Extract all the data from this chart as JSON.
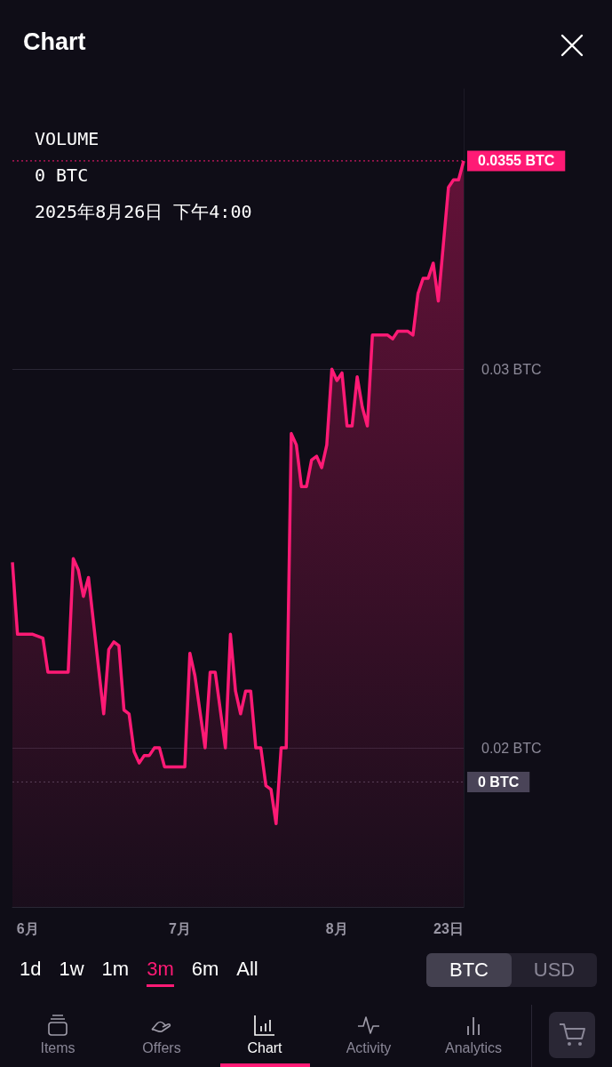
{
  "chart_data": {
    "type": "area",
    "title": "Chart",
    "x": [
      "2025-05-29",
      "2025-05-30",
      "2025-06-02",
      "2025-06-04",
      "2025-06-05",
      "2025-06-09",
      "2025-06-10",
      "2025-06-11",
      "2025-06-12",
      "2025-06-13",
      "2025-06-16",
      "2025-06-17",
      "2025-06-18",
      "2025-06-19",
      "2025-06-20",
      "2025-06-21",
      "2025-06-22",
      "2025-06-23",
      "2025-06-24",
      "2025-06-25",
      "2025-06-26",
      "2025-06-27",
      "2025-06-28",
      "2025-07-02",
      "2025-07-03",
      "2025-07-04",
      "2025-07-06",
      "2025-07-07",
      "2025-07-08",
      "2025-07-10",
      "2025-07-11",
      "2025-07-12",
      "2025-07-13",
      "2025-07-14",
      "2025-07-15",
      "2025-07-16",
      "2025-07-17",
      "2025-07-18",
      "2025-07-19",
      "2025-07-20",
      "2025-07-21",
      "2025-07-22",
      "2025-07-23",
      "2025-07-24",
      "2025-07-25",
      "2025-07-26",
      "2025-07-27",
      "2025-07-28",
      "2025-07-29",
      "2025-07-30",
      "2025-07-31",
      "2025-08-01",
      "2025-08-02",
      "2025-08-03",
      "2025-08-04",
      "2025-08-05",
      "2025-08-06",
      "2025-08-07",
      "2025-08-08",
      "2025-08-11",
      "2025-08-12",
      "2025-08-13",
      "2025-08-15",
      "2025-08-16",
      "2025-08-17",
      "2025-08-18",
      "2025-08-19",
      "2025-08-20",
      "2025-08-21",
      "2025-08-23",
      "2025-08-24",
      "2025-08-25",
      "2025-08-26"
    ],
    "series": [
      {
        "color": "#ff1a75",
        "values": [
          0.0249,
          0.023,
          0.023,
          0.0229,
          0.022,
          0.022,
          0.025,
          0.0247,
          0.024,
          0.0245,
          0.0209,
          0.0226,
          0.0228,
          0.0227,
          0.021,
          0.0209,
          0.0199,
          0.0196,
          0.0198,
          0.0198,
          0.02,
          0.02,
          0.0195,
          0.0195,
          0.0225,
          0.0219,
          0.02,
          0.022,
          0.022,
          0.02,
          0.023,
          0.0215,
          0.0209,
          0.0215,
          0.0215,
          0.02,
          0.02,
          0.019,
          0.0189,
          0.018,
          0.02,
          0.02,
          0.0283,
          0.028,
          0.0269,
          0.0269,
          0.0276,
          0.0277,
          0.0274,
          0.028,
          0.03,
          0.0297,
          0.0299,
          0.0285,
          0.0285,
          0.0298,
          0.029,
          0.0285,
          0.0309,
          0.0309,
          0.0308,
          0.031,
          0.031,
          0.0309,
          0.032,
          0.0324,
          0.0324,
          0.0328,
          0.0318,
          0.0348,
          0.035,
          0.035,
          0.0355
        ]
      }
    ],
    "xlim": [
      "2025-05-29",
      "2025-08-26"
    ],
    "xticks": [
      {
        "value": "2025-06-01",
        "label": "6月"
      },
      {
        "value": "2025-07-01",
        "label": "7月"
      },
      {
        "value": "2025-08-01",
        "label": "8月"
      },
      {
        "value": "2025-08-23",
        "label": "23日"
      }
    ],
    "ylim": [
      0.0158,
      0.0374
    ],
    "yticks": [
      {
        "value": 0.02,
        "label": "0.02 BTC"
      },
      {
        "value": 0.03,
        "label": "0.03 BTC"
      }
    ],
    "ref_lines": [
      {
        "axis": "y",
        "value": 0.0355,
        "label": "0.0355 BTC",
        "color": "#ff1a75",
        "line_style": "dotted"
      },
      {
        "axis": "y",
        "value": 0.0191,
        "label": "0 BTC",
        "color": "#4a4458",
        "line_style": "dotted"
      }
    ],
    "annotations": [
      "VOLUME",
      "0 BTC",
      "2025年8月26日 下午4:00",
      "1d",
      "1w",
      "1m",
      "3m",
      "6m",
      "All",
      "BTC",
      "USD",
      "Items",
      "Offers",
      "Chart",
      "Activity",
      "Analytics"
    ],
    "grid": "y",
    "marker": "none",
    "line_style": "solid"
  }
}
